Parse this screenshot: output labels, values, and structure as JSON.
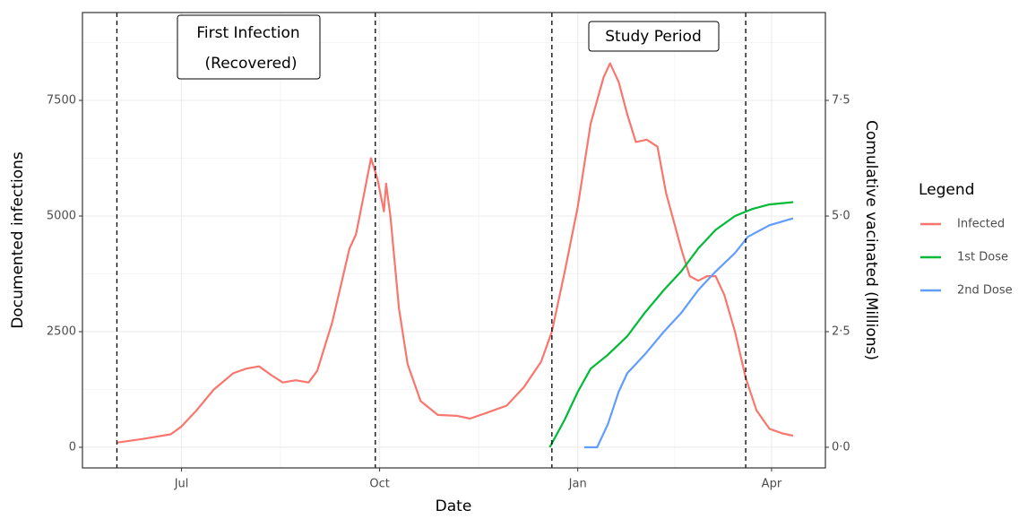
{
  "chart_data": {
    "type": "line",
    "x_label": "Date",
    "y_label": "Documented infections",
    "y2_label": "Comulative vacinated (Millions)",
    "xlim": [
      -46,
      299
    ],
    "ylim": [
      -446,
      9399
    ],
    "y2lim": [
      -0.446,
      9.399
    ],
    "xticks": [
      {
        "value": 0,
        "label": "Jul"
      },
      {
        "value": 92,
        "label": "Oct"
      },
      {
        "value": 184,
        "label": "Jan"
      },
      {
        "value": 274,
        "label": "Apr"
      }
    ],
    "xminor": [
      46,
      138,
      229
    ],
    "yticks": [
      0,
      2500,
      5000,
      7500
    ],
    "yminor": [
      1250,
      3750,
      6250,
      8750
    ],
    "y2ticks": [
      {
        "value": 0,
        "label": "0·0"
      },
      {
        "value": 2.5,
        "label": "2·5"
      },
      {
        "value": 5,
        "label": "5·0"
      },
      {
        "value": 7.5,
        "label": "7·5"
      }
    ],
    "grid": true,
    "vlines": [
      -30,
      90,
      172,
      262
    ],
    "annotations": [
      [
        "First Infection",
        "(Recovered)"
      ],
      [
        "Study Period"
      ]
    ],
    "legend_title": "Legend",
    "legend": "right",
    "series": [
      {
        "name": "Infected",
        "color": "#F8766D",
        "x": [
          -30,
          -18,
          -5,
          0,
          7,
          15,
          24,
          30,
          36,
          42,
          47,
          53,
          59,
          63,
          70,
          78,
          81,
          84,
          88,
          91,
          94,
          95,
          97,
          101,
          105,
          111,
          119,
          128,
          134,
          142,
          151,
          159,
          167,
          172,
          178,
          184,
          190,
          196,
          199,
          203,
          207,
          211,
          216,
          221,
          225,
          232,
          236,
          240,
          244,
          248,
          252,
          257,
          262,
          267,
          273,
          279,
          284
        ],
        "values": [
          100,
          180,
          280,
          450,
          800,
          1250,
          1600,
          1700,
          1750,
          1550,
          1400,
          1450,
          1400,
          1650,
          2700,
          4300,
          4600,
          5300,
          6250,
          5800,
          5100,
          5700,
          5000,
          3000,
          1800,
          1000,
          700,
          680,
          620,
          750,
          900,
          1300,
          1850,
          2500,
          3800,
          5200,
          7000,
          8000,
          8300,
          7900,
          7200,
          6600,
          6650,
          6500,
          5500,
          4300,
          3700,
          3600,
          3700,
          3700,
          3300,
          2500,
          1500,
          800,
          400,
          300,
          250
        ]
      },
      {
        "name": "1st Dose",
        "color": "#00BA38",
        "axis": "y2",
        "x": [
          171,
          178,
          184,
          190,
          198,
          207,
          215,
          224,
          232,
          240,
          248,
          257,
          265,
          273,
          284
        ],
        "values": [
          0,
          0.6,
          1.2,
          1.7,
          2.0,
          2.4,
          2.9,
          3.4,
          3.8,
          4.3,
          4.7,
          5.0,
          5.15,
          5.25,
          5.3
        ]
      },
      {
        "name": "2nd Dose",
        "color": "#619CFF",
        "axis": "y2",
        "x": [
          187,
          193,
          198,
          203,
          207,
          215,
          224,
          232,
          240,
          248,
          257,
          263,
          273,
          284
        ],
        "values": [
          0,
          0,
          0.5,
          1.2,
          1.6,
          2.0,
          2.5,
          2.9,
          3.4,
          3.8,
          4.2,
          4.55,
          4.8,
          4.95
        ]
      }
    ]
  }
}
